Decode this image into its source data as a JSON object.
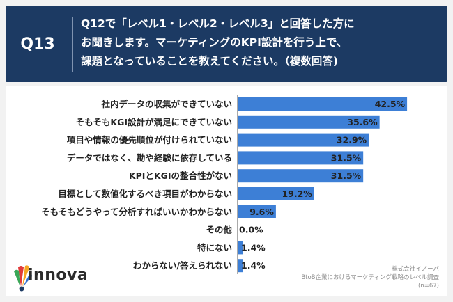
{
  "header": {
    "qnum": "Q13",
    "question": "Q12で「レベル1・レベル2・レベル3」と回答した方に\nお聞きします。マーケティングのKPI設計を行う上で、\n課題となっていることを教えてください。（複数回答)"
  },
  "brand": {
    "name": "innova"
  },
  "source": {
    "company": "株式会社イノーバ",
    "survey": "BtoB企業におけるマーケティング戦略のレベル調査",
    "n": "(n=67)"
  },
  "colors": {
    "header_bg": "#1c3a63",
    "bar": "#3d7fd6",
    "text": "#222222"
  },
  "chart_data": {
    "type": "bar",
    "orientation": "horizontal",
    "categories": [
      "社内データの収集ができていない",
      "そもそもKGI設計が満足にできていない",
      "項目や情報の優先順位が付けられていない",
      "データではなく、勘や経験に依存している",
      "KPIとKGIの整合性がない",
      "目標として数値化するべき項目がわからない",
      "そもそもどうやって分析すればいいかわからない",
      "その他",
      "特にない",
      "わからない/答えられない"
    ],
    "values": [
      42.5,
      35.6,
      32.9,
      31.5,
      31.5,
      19.2,
      9.6,
      0.0,
      1.4,
      1.4
    ],
    "value_labels": [
      "42.5%",
      "35.6%",
      "32.9%",
      "31.5%",
      "31.5%",
      "19.2%",
      "9.6%",
      "0.0%",
      "1.4%",
      "1.4%"
    ],
    "xlim": [
      0,
      50
    ],
    "grid": false
  }
}
